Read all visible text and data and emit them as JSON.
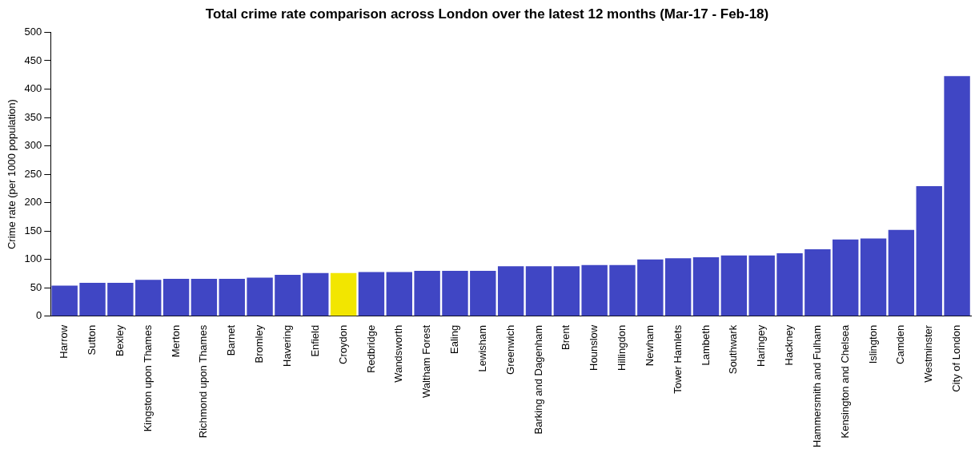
{
  "chart_data": {
    "type": "bar",
    "title": "Total crime rate comparison across London over the latest 12 months (Mar-17 - Feb-18)",
    "ylabel": "Crime rate (per 1000 population)",
    "categories": [
      "Harrow",
      "Sutton",
      "Bexley",
      "Kingston upon Thames",
      "Merton",
      "Richmond upon Thames",
      "Barnet",
      "Bromley",
      "Havering",
      "Enfield",
      "Croydon",
      "Redbridge",
      "Wandsworth",
      "Waltham Forest",
      "Ealing",
      "Lewisham",
      "Greenwich",
      "Barking and Dagenham",
      "Brent",
      "Hounslow",
      "Hillingdon",
      "Newham",
      "Tower Hamlets",
      "Lambeth",
      "Southwark",
      "Haringey",
      "Hackney",
      "Hammersmith and Fulham",
      "Kensington and Chelsea",
      "Islington",
      "Camden",
      "Westminster",
      "City of London"
    ],
    "values": [
      54,
      59,
      59,
      64,
      66,
      66,
      66,
      68,
      73,
      76,
      76,
      78,
      78,
      80,
      80,
      80,
      88,
      88,
      88,
      90,
      90,
      100,
      102,
      104,
      107,
      107,
      111,
      118,
      135,
      137,
      152,
      229,
      423
    ],
    "colors": [
      "#4046c4",
      "#4046c4",
      "#4046c4",
      "#4046c4",
      "#4046c4",
      "#4046c4",
      "#4046c4",
      "#4046c4",
      "#4046c4",
      "#4046c4",
      "#f2e600",
      "#4046c4",
      "#4046c4",
      "#4046c4",
      "#4046c4",
      "#4046c4",
      "#4046c4",
      "#4046c4",
      "#4046c4",
      "#4046c4",
      "#4046c4",
      "#4046c4",
      "#4046c4",
      "#4046c4",
      "#4046c4",
      "#4046c4",
      "#4046c4",
      "#4046c4",
      "#4046c4",
      "#4046c4",
      "#4046c4",
      "#4046c4",
      "#4046c4"
    ],
    "ylim": [
      0,
      500
    ],
    "yticks": [
      0,
      50,
      100,
      150,
      200,
      250,
      300,
      350,
      400,
      450,
      500
    ],
    "grid": false,
    "legend": false
  }
}
